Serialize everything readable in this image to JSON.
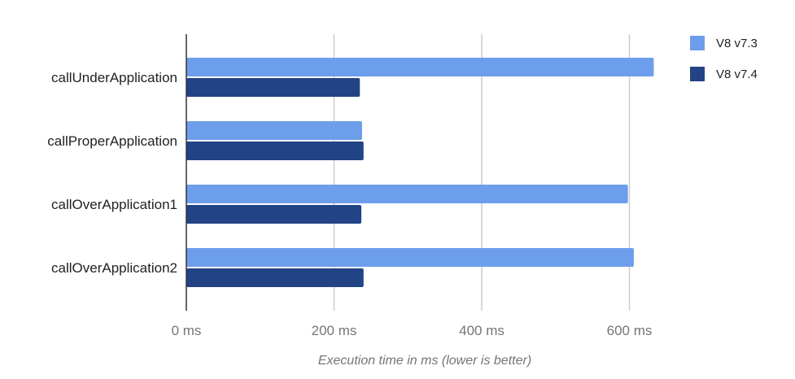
{
  "chart_data": {
    "type": "bar",
    "orientation": "horizontal",
    "categories": [
      "callUnderApplication",
      "callProperApplication",
      "callOverApplication1",
      "callOverApplication2"
    ],
    "series": [
      {
        "name": "V8 v7.3",
        "color": "#6d9eeb",
        "values": [
          633,
          238,
          598,
          606
        ]
      },
      {
        "name": "V8 v7.4",
        "color": "#224386",
        "values": [
          235,
          240,
          237,
          240
        ]
      }
    ],
    "x_ticks": [
      {
        "value": 0,
        "label": "0 ms"
      },
      {
        "value": 200,
        "label": "200 ms"
      },
      {
        "value": 400,
        "label": "400 ms"
      },
      {
        "value": 600,
        "label": "600 ms"
      }
    ],
    "xlim": [
      0,
      660
    ],
    "xlabel": "Execution time in ms (lower is better)",
    "ylabel": "",
    "grid": true,
    "legend": "top-right"
  }
}
